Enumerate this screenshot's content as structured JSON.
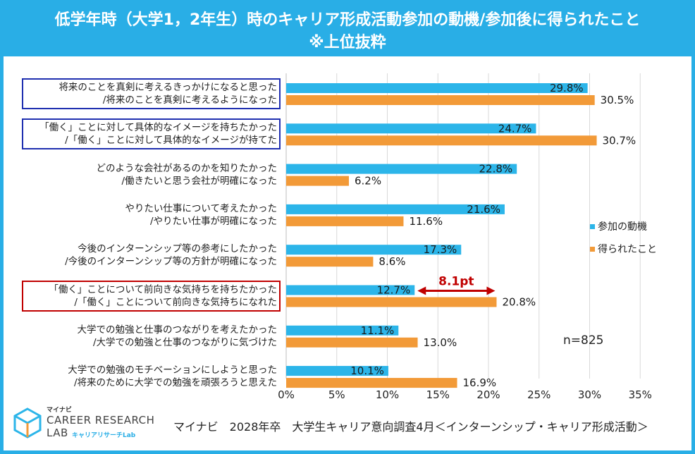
{
  "header": {
    "title_line1": "低学年時（大学1，2年生）時のキャリア形成活動参加の動機/参加後に得られたこと",
    "title_line2": "※上位抜粋"
  },
  "chart_data": {
    "type": "bar",
    "orientation": "horizontal",
    "categories": [
      [
        "将来のことを真剣に考えるきっかけになると思った",
        "/将来のことを真剣に考えるようになった"
      ],
      [
        "「働く」ことに対して具体的なイメージを持ちたかった",
        "/「働く」ことに対して具体的なイメージが持てた"
      ],
      [
        "どのような会社があるのかを知りたかった",
        "/働きたいと思う会社が明確になった"
      ],
      [
        "やりたい仕事について考えたかった",
        "/やりたい仕事が明確になった"
      ],
      [
        "今後のインターンシップ等の参考にしたかった",
        "/今後のインターンシップ等の方針が明確になった"
      ],
      [
        "「働く」ことについて前向きな気持ちを持ちたかった",
        "/「働く」ことについて前向きな気持ちになれた"
      ],
      [
        "大学での勉強と仕事のつながりを考えたかった",
        "/大学での勉強と仕事のつながりに気づけた"
      ],
      [
        "大学での勉強のモチベーションにしようと思った",
        "/将来のために大学での勉強を頑張ろうと思えた"
      ]
    ],
    "series": [
      {
        "name": "参加の動機",
        "color": "#2cb5e9",
        "values": [
          29.8,
          24.7,
          22.8,
          21.6,
          17.3,
          12.7,
          11.1,
          10.1
        ]
      },
      {
        "name": "得られたこと",
        "color": "#f29a38",
        "values": [
          30.5,
          30.7,
          6.2,
          11.6,
          8.6,
          20.8,
          13.0,
          16.9
        ]
      }
    ],
    "value_suffix": "%",
    "xlim": [
      0,
      35
    ],
    "xticks": [
      "0%",
      "5%",
      "10%",
      "15%",
      "20%",
      "25%",
      "30%",
      "35%"
    ],
    "grid": true,
    "legend_position": "right",
    "highlight_boxes": [
      {
        "row": 0,
        "color": "#1f2fb0"
      },
      {
        "row": 1,
        "color": "#1f2fb0"
      },
      {
        "row": 5,
        "color": "#c00000"
      }
    ],
    "annotation": {
      "row": 5,
      "text": "8.1pt",
      "color": "#c00000",
      "from": 12.7,
      "to": 20.8
    }
  },
  "sample_size": "n=825",
  "footer": {
    "source": "マイナビ　2028年卒　大学生キャリア意向調査4月＜インターンシップ・キャリア形成活動＞"
  },
  "logo": {
    "brand": "マイナビ",
    "name_line1": "CAREER RESEARCH",
    "name_line2": "LAB",
    "sub": "キャリアリサーチLab"
  }
}
